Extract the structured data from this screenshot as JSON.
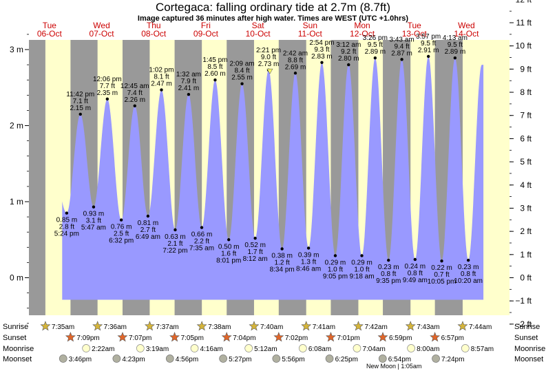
{
  "header": {
    "title": "Cortegaca: falling  ordinary tide at 2.7m (8.7ft)",
    "subtitle": "Image captured 36 minutes after high water. Times are WEST (UTC +1.0hrs)"
  },
  "colors": {
    "night": "#999999",
    "day": "#ffffcc",
    "tide": "#9999ff",
    "weekday": "#cc0000",
    "sunrise_star": "#d4b43a",
    "sunset_star": "#e0662a",
    "moonrise": "#ffffcc",
    "moonset": "#b0b0a0"
  },
  "chart_data": {
    "type": "area",
    "title": "Cortegaca: falling  ordinary tide at 2.7m (8.7ft)",
    "days": [
      {
        "weekday": "Tue",
        "date": "06-Oct"
      },
      {
        "weekday": "Wed",
        "date": "07-Oct"
      },
      {
        "weekday": "Thu",
        "date": "08-Oct"
      },
      {
        "weekday": "Fri",
        "date": "09-Oct"
      },
      {
        "weekday": "Sat",
        "date": "10-Oct"
      },
      {
        "weekday": "Sun",
        "date": "11-Oct"
      },
      {
        "weekday": "Mon",
        "date": "12-Oct"
      },
      {
        "weekday": "Tue",
        "date": "13-Oct"
      },
      {
        "weekday": "Wed",
        "date": "14-Oct"
      }
    ],
    "left_axis": {
      "unit": "m",
      "ticks": [
        "0 m",
        "1 m",
        "2 m",
        "3 m"
      ],
      "ylim": [
        -0.6,
        3.4
      ]
    },
    "right_axis": {
      "unit": "ft",
      "ticks": [
        "−2 ft",
        "−1 ft",
        "0 ft",
        "1 ft",
        "2 ft",
        "3 ft",
        "4 ft",
        "5 ft",
        "6 ft",
        "7 ft",
        "8 ft",
        "9 ft",
        "10 ft",
        "11 ft",
        "12 ft"
      ]
    },
    "extremes": [
      {
        "day": 0,
        "kind": "low",
        "time": "5:24 pm",
        "m": 0.85,
        "ft": 2.8,
        "hours": 17.4,
        "label": [
          "0.85 m",
          "2.8 ft",
          "5:24 pm"
        ]
      },
      {
        "day": 0,
        "kind": "high",
        "time": "11:42 pm",
        "m": 2.15,
        "ft": 7.1,
        "hours": 23.7,
        "label": [
          "11:42 pm",
          "7.1 ft",
          "2.15 m"
        ]
      },
      {
        "day": 1,
        "kind": "low",
        "time": "5:47 am",
        "m": 0.93,
        "ft": 3.1,
        "hours": 29.783,
        "label": [
          "0.93 m",
          "3.1 ft",
          "5:47 am"
        ]
      },
      {
        "day": 1,
        "kind": "high",
        "time": "12:06 pm",
        "m": 2.35,
        "ft": 7.7,
        "hours": 36.1,
        "label": [
          "12:06 pm",
          "7.7 ft",
          "2.35 m"
        ]
      },
      {
        "day": 1,
        "kind": "low",
        "time": "6:32 pm",
        "m": 0.76,
        "ft": 2.5,
        "hours": 42.533,
        "label": [
          "0.76 m",
          "2.5 ft",
          "6:32 pm"
        ]
      },
      {
        "day": 2,
        "kind": "high",
        "time": "12:45 am",
        "m": 2.26,
        "ft": 7.4,
        "hours": 48.75,
        "label": [
          "12:45 am",
          "7.4 ft",
          "2.26 m"
        ]
      },
      {
        "day": 2,
        "kind": "low",
        "time": "6:49 am",
        "m": 0.81,
        "ft": 2.7,
        "hours": 54.817,
        "label": [
          "0.81 m",
          "2.7 ft",
          "6:49 am"
        ]
      },
      {
        "day": 2,
        "kind": "high",
        "time": "1:02 pm",
        "m": 2.47,
        "ft": 8.1,
        "hours": 61.033,
        "label": [
          "1:02 pm",
          "8.1 ft",
          "2.47 m"
        ]
      },
      {
        "day": 2,
        "kind": "low",
        "time": "7:22 pm",
        "m": 0.63,
        "ft": 2.1,
        "hours": 67.367,
        "label": [
          "0.63 m",
          "2.1 ft",
          "7:22 pm"
        ]
      },
      {
        "day": 3,
        "kind": "high",
        "time": "1:32 am",
        "m": 2.41,
        "ft": 7.9,
        "hours": 73.533,
        "label": [
          "1:32 am",
          "7.9 ft",
          "2.41 m"
        ]
      },
      {
        "day": 3,
        "kind": "low",
        "time": "7:35 am",
        "m": 0.66,
        "ft": 2.2,
        "hours": 79.583,
        "label": [
          "0.66 m",
          "2.2 ft",
          "7:35 am"
        ]
      },
      {
        "day": 3,
        "kind": "high",
        "time": "1:45 pm",
        "m": 2.6,
        "ft": 8.5,
        "hours": 85.75,
        "label": [
          "1:45 pm",
          "8.5 ft",
          "2.60 m"
        ]
      },
      {
        "day": 3,
        "kind": "low",
        "time": "8:01 pm",
        "m": 0.5,
        "ft": 1.6,
        "hours": 92.017,
        "label": [
          "0.50 m",
          "1.6 ft",
          "8:01 pm"
        ]
      },
      {
        "day": 4,
        "kind": "high",
        "time": "2:09 am",
        "m": 2.55,
        "ft": 8.4,
        "hours": 98.15,
        "label": [
          "2:09 am",
          "8.4 ft",
          "2.55 m"
        ]
      },
      {
        "day": 4,
        "kind": "low",
        "time": "8:12 am",
        "m": 0.52,
        "ft": 1.7,
        "hours": 104.2,
        "label": [
          "0.52 m",
          "1.7 ft",
          "8:12 am"
        ]
      },
      {
        "day": 4,
        "kind": "high",
        "time": "2:21 pm",
        "m": 2.73,
        "ft": 9.0,
        "hours": 110.35,
        "label": [
          "2:21 pm",
          "9.0 ft",
          "2.73 m"
        ]
      },
      {
        "day": 4,
        "kind": "low",
        "time": "8:34 pm",
        "m": 0.38,
        "ft": 1.2,
        "hours": 116.567,
        "label": [
          "0.38 m",
          "1.2 ft",
          "8:34 pm"
        ]
      },
      {
        "day": 5,
        "kind": "high",
        "time": "2:42 am",
        "m": 2.69,
        "ft": 8.8,
        "hours": 122.7,
        "label": [
          "2:42 am",
          "8.8 ft",
          "2.69 m"
        ]
      },
      {
        "day": 5,
        "kind": "low",
        "time": "8:46 am",
        "m": 0.39,
        "ft": 1.3,
        "hours": 128.767,
        "label": [
          "0.39 m",
          "1.3 ft",
          "8:46 am"
        ]
      },
      {
        "day": 5,
        "kind": "high",
        "time": "2:54 pm",
        "m": 2.83,
        "ft": 9.3,
        "hours": 134.9,
        "label": [
          "2:54 pm",
          "9.3 ft",
          "2.83 m"
        ]
      },
      {
        "day": 5,
        "kind": "low",
        "time": "9:05 pm",
        "m": 0.29,
        "ft": 1.0,
        "hours": 141.083,
        "label": [
          "0.29 m",
          "1.0 ft",
          "9:05 pm"
        ]
      },
      {
        "day": 6,
        "kind": "high",
        "time": "3:12 am",
        "m": 2.8,
        "ft": 9.2,
        "hours": 147.2,
        "label": [
          "3:12 am",
          "9.2 ft",
          "2.80 m"
        ]
      },
      {
        "day": 6,
        "kind": "low",
        "time": "9:18 am",
        "m": 0.29,
        "ft": 1.0,
        "hours": 153.3,
        "label": [
          "0.29 m",
          "1.0 ft",
          "9:18 am"
        ]
      },
      {
        "day": 6,
        "kind": "high",
        "time": "3:26 pm",
        "m": 2.89,
        "ft": 9.5,
        "hours": 159.433,
        "label": [
          "3:26 pm",
          "9.5 ft",
          "2.89 m"
        ]
      },
      {
        "day": 6,
        "kind": "low",
        "time": "9:35 pm",
        "m": 0.23,
        "ft": 0.8,
        "hours": 165.583,
        "label": [
          "0.23 m",
          "0.8 ft",
          "9:35 pm"
        ]
      },
      {
        "day": 7,
        "kind": "high",
        "time": "3:43 am",
        "m": 2.87,
        "ft": 9.4,
        "hours": 171.717,
        "label": [
          "3:43 am",
          "9.4 ft",
          "2.87 m"
        ]
      },
      {
        "day": 7,
        "kind": "low",
        "time": "9:49 am",
        "m": 0.24,
        "ft": 0.8,
        "hours": 177.817,
        "label": [
          "0.24 m",
          "0.8 ft",
          "9:49 am"
        ]
      },
      {
        "day": 7,
        "kind": "high",
        "time": "3:57 pm",
        "m": 2.91,
        "ft": 9.5,
        "hours": 183.95,
        "label": [
          "3:57 pm",
          "9.5 ft",
          "2.91 m"
        ]
      },
      {
        "day": 7,
        "kind": "low",
        "time": "10:05 pm",
        "m": 0.22,
        "ft": 0.7,
        "hours": 190.083,
        "label": [
          "0.22 m",
          "0.7 ft",
          "10:05 pm"
        ]
      },
      {
        "day": 8,
        "kind": "high",
        "time": "4:13 am",
        "m": 2.89,
        "ft": 9.5,
        "hours": 196.217,
        "label": [
          "4:13 am",
          "9.5 ft",
          "2.89 m"
        ]
      },
      {
        "day": 8,
        "kind": "low",
        "time": "10:20 am",
        "m": 0.23,
        "ft": 0.8,
        "hours": 202.333,
        "label": [
          "0.23 m",
          "0.8 ft",
          "10:20 am"
        ]
      }
    ],
    "sunrise": [
      {
        "time": "7:35am",
        "hours": 7.583
      },
      {
        "time": "7:36am",
        "hours": 31.6
      },
      {
        "time": "7:37am",
        "hours": 55.617
      },
      {
        "time": "7:38am",
        "hours": 79.633
      },
      {
        "time": "7:40am",
        "hours": 103.667
      },
      {
        "time": "7:41am",
        "hours": 127.683
      },
      {
        "time": "7:42am",
        "hours": 151.7
      },
      {
        "time": "7:43am",
        "hours": 175.717
      },
      {
        "time": "7:44am",
        "hours": 199.733
      }
    ],
    "sunset": [
      {
        "time": "7:09pm",
        "hours": 19.15
      },
      {
        "time": "7:07pm",
        "hours": 43.117
      },
      {
        "time": "7:05pm",
        "hours": 67.083
      },
      {
        "time": "7:04pm",
        "hours": 91.067
      },
      {
        "time": "7:02pm",
        "hours": 115.033
      },
      {
        "time": "7:01pm",
        "hours": 139.017
      },
      {
        "time": "6:59pm",
        "hours": 162.983
      },
      {
        "time": "6:57pm",
        "hours": 186.95
      }
    ],
    "moonrise": [
      {
        "time": "2:22am",
        "hours": 26.367
      },
      {
        "time": "3:19am",
        "hours": 51.317
      },
      {
        "time": "4:16am",
        "hours": 76.267
      },
      {
        "time": "5:12am",
        "hours": 101.2
      },
      {
        "time": "6:08am",
        "hours": 126.133
      },
      {
        "time": "7:04am",
        "hours": 151.067
      },
      {
        "time": "8:00am",
        "hours": 176.0
      },
      {
        "time": "8:57am",
        "hours": 200.95
      }
    ],
    "moonset": [
      {
        "time": "3:46pm",
        "hours": 15.767
      },
      {
        "time": "4:23pm",
        "hours": 40.383
      },
      {
        "time": "4:56pm",
        "hours": 64.933
      },
      {
        "time": "5:27pm",
        "hours": 89.45
      },
      {
        "time": "5:56pm",
        "hours": 113.933
      },
      {
        "time": "6:25pm",
        "hours": 138.417
      },
      {
        "time": "6:54pm",
        "hours": 162.9
      },
      {
        "time": "7:24pm",
        "hours": 187.4
      }
    ],
    "moon_phase": {
      "text": "New Moon | 1:05am"
    },
    "now": {
      "hours": 110.95,
      "m": 2.7
    }
  },
  "rows": {
    "sunrise_label": "Sunrise",
    "sunset_label": "Sunset",
    "moonrise_label": "Moonrise",
    "moonset_label": "Moonset"
  }
}
